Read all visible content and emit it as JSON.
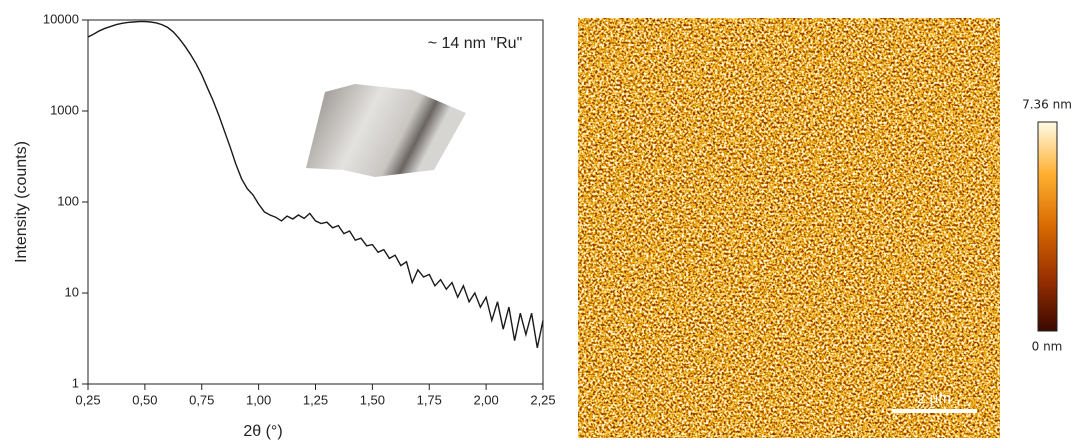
{
  "chart_data": [
    {
      "type": "line",
      "y_label": "Intensity (counts)",
      "x_label": "2θ (°)",
      "annotation": "~ 14 nm \"Ru\"",
      "log_y": true,
      "color": "#1a1a1a",
      "xlim": [
        0.25,
        2.25
      ],
      "xticks": [
        {
          "value": 0.25,
          "label": "0,25"
        },
        {
          "value": 0.5,
          "label": "0,50"
        },
        {
          "value": 0.75,
          "label": "0,75"
        },
        {
          "value": 1.0,
          "label": "1,00"
        },
        {
          "value": 1.25,
          "label": "1,25"
        },
        {
          "value": 1.5,
          "label": "1,50"
        },
        {
          "value": 1.75,
          "label": "1,75"
        },
        {
          "value": 2.0,
          "label": "2,00"
        },
        {
          "value": 2.25,
          "label": "2,25"
        }
      ],
      "ylim": [
        1,
        10000
      ],
      "yticks": [
        1,
        10,
        100,
        1000,
        10000
      ],
      "x": [
        0.25,
        0.275,
        0.3,
        0.325,
        0.35,
        0.375,
        0.4,
        0.425,
        0.45,
        0.475,
        0.5,
        0.525,
        0.55,
        0.575,
        0.6,
        0.625,
        0.65,
        0.675,
        0.7,
        0.725,
        0.75,
        0.775,
        0.8,
        0.825,
        0.85,
        0.875,
        0.9,
        0.925,
        0.95,
        0.975,
        1.0,
        1.025,
        1.05,
        1.075,
        1.1,
        1.125,
        1.15,
        1.175,
        1.2,
        1.225,
        1.25,
        1.275,
        1.3,
        1.325,
        1.35,
        1.375,
        1.4,
        1.425,
        1.45,
        1.475,
        1.5,
        1.525,
        1.55,
        1.575,
        1.6,
        1.625,
        1.65,
        1.675,
        1.7,
        1.725,
        1.75,
        1.775,
        1.8,
        1.825,
        1.85,
        1.875,
        1.9,
        1.925,
        1.95,
        1.975,
        2.0,
        2.025,
        2.05,
        2.075,
        2.1,
        2.125,
        2.15,
        2.175,
        2.2,
        2.225,
        2.25
      ],
      "values": [
        6500,
        7000,
        7600,
        8100,
        8500,
        8900,
        9200,
        9400,
        9500,
        9600,
        9600,
        9500,
        9300,
        8900,
        8300,
        7400,
        6300,
        5200,
        4200,
        3300,
        2500,
        1800,
        1300,
        900,
        600,
        400,
        260,
        180,
        140,
        120,
        95,
        78,
        72,
        68,
        62,
        70,
        65,
        72,
        66,
        75,
        62,
        58,
        60,
        52,
        55,
        45,
        48,
        38,
        40,
        33,
        34,
        28,
        30,
        24,
        26,
        20,
        22,
        13,
        18,
        15,
        16,
        12,
        14,
        11,
        13,
        9,
        12,
        8,
        10,
        7,
        9,
        5,
        8,
        4,
        7,
        3,
        6,
        3.5,
        6,
        2.5,
        5
      ]
    },
    {
      "type": "image",
      "colorbar_max_label": "7.36 nm",
      "colorbar_min_label": "0 nm",
      "scale_bar_label": "2 μm",
      "colormap": [
        "#3a0800",
        "#9a3000",
        "#d86a00",
        "#ffb030",
        "#fffbe6"
      ]
    }
  ]
}
